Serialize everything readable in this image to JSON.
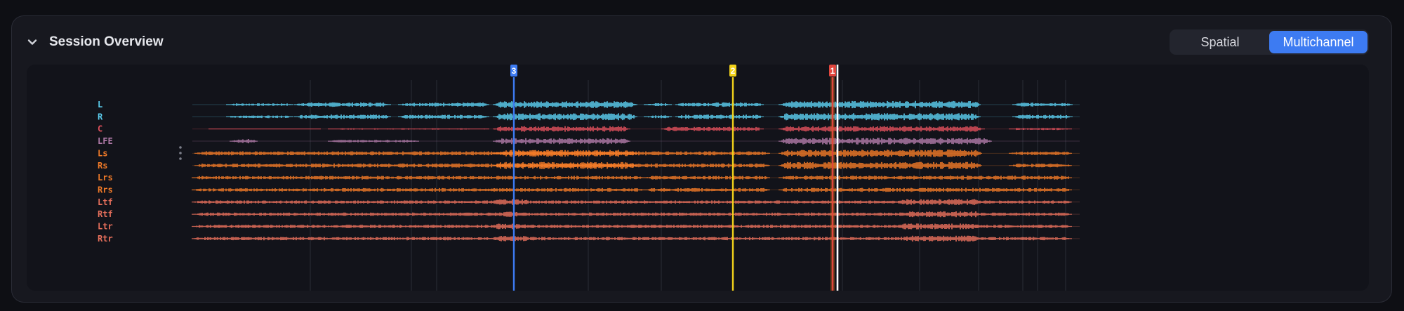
{
  "header": {
    "title": "Session Overview",
    "collapse_icon": "chevron-down-icon"
  },
  "view_toggle": {
    "options": [
      "Spatial",
      "Multichannel"
    ],
    "selected": "Multichannel",
    "accent": "#3d7bf2"
  },
  "channels": [
    {
      "name": "L",
      "color": "#5ccff0"
    },
    {
      "name": "R",
      "color": "#5ccff0"
    },
    {
      "name": "C",
      "color": "#e0505c"
    },
    {
      "name": "LFE",
      "color": "#b07aa8"
    },
    {
      "name": "Ls",
      "color": "#f07a28"
    },
    {
      "name": "Rs",
      "color": "#f07a28"
    },
    {
      "name": "Lrs",
      "color": "#f07a28"
    },
    {
      "name": "Rrs",
      "color": "#f07a28"
    },
    {
      "name": "Ltf",
      "color": "#e8705c"
    },
    {
      "name": "Rtf",
      "color": "#e8705c"
    },
    {
      "name": "Ltr",
      "color": "#e8705c"
    },
    {
      "name": "Rtr",
      "color": "#e8705c"
    }
  ],
  "markers": [
    {
      "label": "3",
      "color": "#3d7bf2"
    },
    {
      "label": "2",
      "color": "#f2d21a"
    },
    {
      "label": "1",
      "color": "#e0463e"
    }
  ],
  "playhead_color": "#ffffff"
}
